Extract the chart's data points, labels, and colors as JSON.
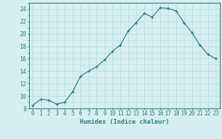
{
  "x": [
    0,
    1,
    2,
    3,
    4,
    5,
    6,
    7,
    8,
    9,
    10,
    11,
    12,
    13,
    14,
    15,
    16,
    17,
    18,
    19,
    20,
    21,
    22,
    23
  ],
  "y": [
    8.5,
    9.5,
    9.3,
    8.7,
    9.0,
    10.7,
    13.2,
    14.0,
    14.7,
    15.8,
    17.2,
    18.2,
    20.5,
    21.8,
    23.3,
    22.7,
    24.2,
    24.1,
    23.7,
    21.8,
    20.2,
    18.2,
    16.7,
    16.0
  ],
  "xlabel": "Humidex (Indice chaleur)",
  "bg_color": "#d6eef2",
  "grid_color": "#b8dce2",
  "line_color": "#2d7d78",
  "marker_color": "#2d7d78",
  "ymin": 8,
  "ymax": 25,
  "yticks": [
    8,
    10,
    12,
    14,
    16,
    18,
    20,
    22,
    24
  ],
  "xticks": [
    0,
    1,
    2,
    3,
    4,
    5,
    6,
    7,
    8,
    9,
    10,
    11,
    12,
    13,
    14,
    15,
    16,
    17,
    18,
    19,
    20,
    21,
    22,
    23
  ],
  "xlabel_fontsize": 6.5,
  "tick_fontsize": 5.8
}
